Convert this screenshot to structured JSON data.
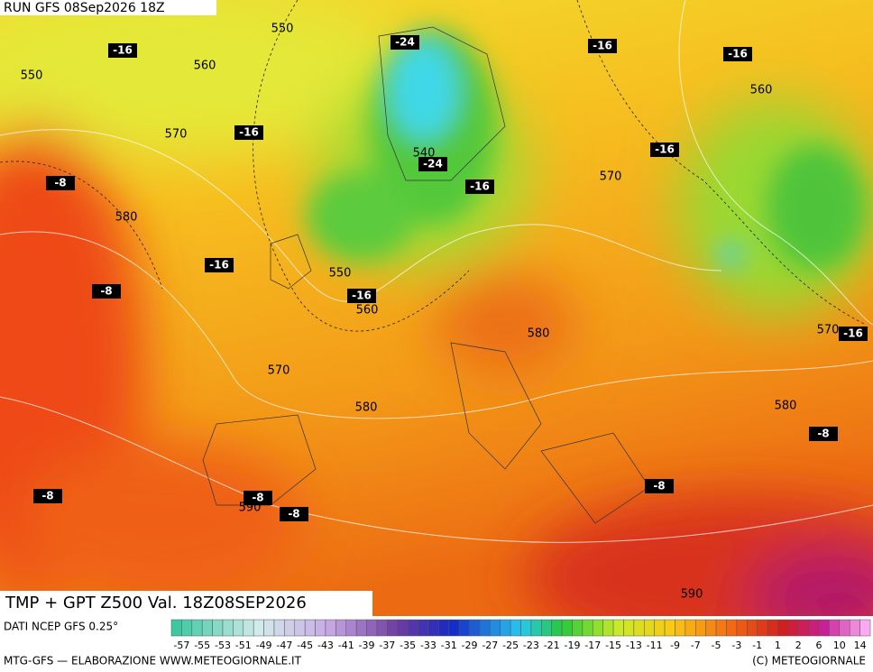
{
  "header": {
    "run": "RUN GFS 08Sep2026 18Z"
  },
  "map": {
    "contour_labels": [
      550,
      -16,
      550,
      560,
      -24,
      -16,
      -16,
      560,
      570,
      -16,
      540,
      -24,
      -16,
      -8,
      570,
      -16,
      580,
      -16,
      550,
      -8,
      -16,
      560,
      580,
      570,
      -16,
      570,
      580,
      580,
      -8,
      -8,
      -8,
      -8,
      590,
      -8,
      590
    ]
  },
  "footer": {
    "title": "TMP + GPT Z500 Val. 18Z08SEP2026",
    "source": "DATI NCEP GFS 0.25°",
    "credit": "MTG-GFS — ELABORAZIONE WWW.METEOGIORNALE.IT",
    "copyright": "(C) METEOGIORNALE",
    "colorbar_labels": [
      -57,
      -55,
      -53,
      -51,
      -49,
      -47,
      -45,
      -43,
      -41,
      -39,
      -37,
      -35,
      -33,
      -31,
      -29,
      -27,
      -25,
      -23,
      -21,
      -19,
      -17,
      -15,
      -13,
      -11,
      -9,
      -7,
      -5,
      -3,
      -1,
      1,
      2,
      6,
      10,
      14
    ]
  }
}
